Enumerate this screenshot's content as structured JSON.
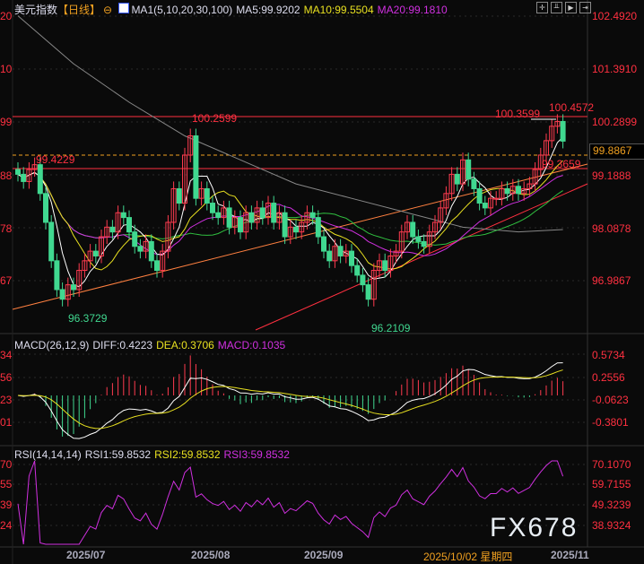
{
  "header": {
    "title": "美元指数",
    "period": "【日线】",
    "ma_label": "MA1(5,10,20,30,100)",
    "ma5": "MA5:99.9202",
    "ma10": "MA10:99.5504",
    "ma20": "MA20:99.1810"
  },
  "toolbar_icons": [
    "crosshair-icon",
    "chart-range-icon",
    "play-icon",
    "exit-icon"
  ],
  "price_axis": [
    "102.4920",
    "101.3910",
    "100.2899",
    "99.1888",
    "98.0878",
    "96.9867"
  ],
  "left_axis": [
    "20",
    "10",
    "99",
    "88",
    "78",
    "67"
  ],
  "current_price": "99.8867",
  "annotations": {
    "h1": "99.4229",
    "l1": "96.3729",
    "h2": "100.2599",
    "l2": "96.2109",
    "h3": "100.3599",
    "h4": "100.4572",
    "c1": "99.3659"
  },
  "macd": {
    "label": "MACD(26,12,9)",
    "diff": "DIFF:0.4223",
    "dea": "DEA:0.3706",
    "macd": "MACD:0.1035",
    "axis": [
      "0.5734",
      "0.2556",
      "-0.0623",
      "-0.3801"
    ],
    "left_axis": [
      "34",
      "56",
      "23",
      "01"
    ]
  },
  "rsi": {
    "label": "RSI(14,14,14)",
    "rsi1": "RSI1:59.8532",
    "rsi2": "RSI2:59.8532",
    "rsi3": "RSI3:59.8532",
    "axis": [
      "70.1070",
      "59.7155",
      "49.3239",
      "38.9324"
    ],
    "left_axis": [
      "70",
      "55",
      "39",
      "24"
    ]
  },
  "dates": [
    "2025/07",
    "2025/08",
    "2025/09",
    "2025/10/02 星期四",
    "2025/11"
  ],
  "watermark": "FX678",
  "colors": {
    "up": "#ff3b4f",
    "down": "#40d890",
    "ma5": "#ffffff",
    "ma10": "#e8e020",
    "ma20": "#d030e0",
    "ma30": "#30c040",
    "ma100": "#888888"
  },
  "chart_data": {
    "type": "candlestick",
    "closes": [
      99.2,
      99.05,
      99.3,
      99.4,
      98.8,
      98.2,
      97.4,
      96.8,
      96.6,
      96.9,
      96.8,
      97.2,
      97.4,
      97.6,
      97.5,
      97.9,
      98.1,
      98.0,
      98.4,
      98.3,
      98.0,
      97.7,
      97.6,
      97.8,
      97.4,
      97.2,
      97.6,
      98.2,
      98.9,
      98.6,
      99.6,
      100.0,
      98.7,
      98.9,
      98.6,
      98.4,
      98.3,
      98.5,
      98.1,
      98.3,
      98.0,
      98.4,
      98.2,
      98.5,
      98.3,
      98.6,
      98.2,
      98.4,
      97.9,
      98.1,
      98.0,
      98.2,
      98.4,
      98.3,
      97.9,
      97.6,
      97.4,
      97.7,
      97.5,
      97.6,
      97.3,
      97.1,
      96.9,
      96.6,
      97.2,
      97.4,
      97.2,
      97.5,
      97.6,
      98.0,
      98.2,
      97.9,
      97.8,
      97.7,
      98.0,
      98.2,
      98.5,
      98.8,
      99.2,
      99.0,
      99.5,
      99.1,
      98.9,
      98.6,
      98.5,
      98.7,
      98.7,
      98.9,
      98.8,
      98.95,
      98.8,
      98.9,
      99.0,
      99.3,
      99.6,
      99.9,
      100.2,
      100.3,
      99.89
    ],
    "ma100_points": [
      102.5,
      101.5,
      100.7,
      100.0,
      99.5,
      99.0,
      98.7,
      98.4,
      98.1,
      98.0,
      98.05
    ],
    "ylim": [
      96.0,
      102.6
    ]
  }
}
